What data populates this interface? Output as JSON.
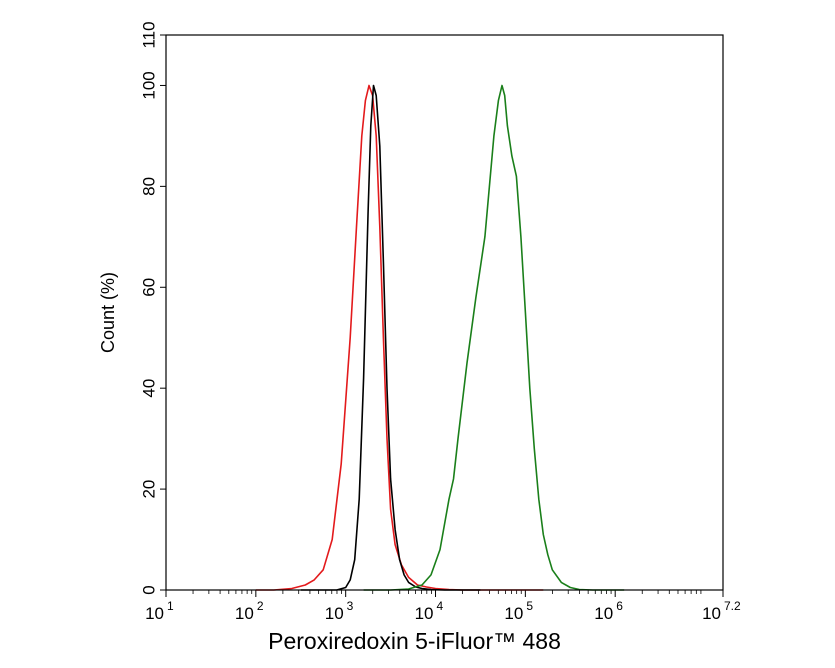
{
  "chart_data": {
    "type": "line",
    "title": "",
    "xlabel": "Peroxiredoxin 5-iFluor™ 488",
    "ylabel": "Count  (%)",
    "x_scale": "log10",
    "xlim": [
      1,
      7.2
    ],
    "ylim": [
      0,
      110
    ],
    "x_ticks": [
      {
        "base": "10",
        "exp": "1",
        "v": 1
      },
      {
        "base": "10",
        "exp": "2",
        "v": 2
      },
      {
        "base": "10",
        "exp": "3",
        "v": 3
      },
      {
        "base": "10",
        "exp": "4",
        "v": 4
      },
      {
        "base": "10",
        "exp": "5",
        "v": 5
      },
      {
        "base": "10",
        "exp": "6",
        "v": 6
      },
      {
        "base": "10",
        "exp": "7.2",
        "v": 7.2
      }
    ],
    "y_ticks": [
      "0",
      "20",
      "40",
      "60",
      "80",
      "100",
      "110"
    ],
    "grid": false,
    "legend": "none",
    "series": [
      {
        "color": "#e31a1c",
        "x": [
          2.0,
          2.2,
          2.4,
          2.55,
          2.65,
          2.75,
          2.85,
          2.95,
          3.05,
          3.12,
          3.18,
          3.22,
          3.26,
          3.3,
          3.34,
          3.38,
          3.42,
          3.46,
          3.5,
          3.55,
          3.62,
          3.7,
          3.8,
          3.9,
          4.0,
          4.15,
          4.3,
          4.5,
          4.8,
          5.0,
          5.2
        ],
        "y": [
          0,
          0,
          0.3,
          1,
          2,
          4,
          10,
          25,
          50,
          72,
          90,
          97,
          100,
          98,
          90,
          72,
          50,
          30,
          16,
          9,
          5,
          2.5,
          1,
          0.6,
          0.3,
          0.1,
          0,
          0,
          0,
          0,
          0
        ]
      },
      {
        "color": "#000000",
        "x": [
          2.5,
          2.9,
          3.0,
          3.05,
          3.1,
          3.15,
          3.2,
          3.25,
          3.28,
          3.31,
          3.34,
          3.38,
          3.42,
          3.46,
          3.5,
          3.55,
          3.6,
          3.65,
          3.7,
          3.78,
          3.85,
          3.95,
          4.1,
          4.3,
          4.5
        ],
        "y": [
          0,
          0,
          0.5,
          2,
          6,
          18,
          42,
          75,
          92,
          100,
          98,
          88,
          65,
          40,
          22,
          12,
          6,
          3,
          1.5,
          0.6,
          0.3,
          0.1,
          0,
          0,
          0
        ]
      },
      {
        "color": "#1a7f1a",
        "x": [
          3.2,
          3.5,
          3.7,
          3.85,
          3.95,
          4.05,
          4.1,
          4.15,
          4.2,
          4.25,
          4.35,
          4.45,
          4.55,
          4.6,
          4.65,
          4.7,
          4.74,
          4.77,
          4.8,
          4.85,
          4.9,
          4.95,
          5.0,
          5.05,
          5.1,
          5.15,
          5.2,
          5.25,
          5.3,
          5.4,
          5.5,
          5.6,
          5.75,
          5.9,
          6.1
        ],
        "y": [
          0,
          0,
          0.2,
          1,
          3,
          8,
          13,
          18,
          22,
          30,
          45,
          58,
          70,
          80,
          90,
          97,
          100,
          98,
          92,
          86,
          82,
          70,
          55,
          40,
          28,
          18,
          11,
          7,
          4,
          1.5,
          0.5,
          0.1,
          0,
          0,
          0
        ]
      }
    ]
  }
}
